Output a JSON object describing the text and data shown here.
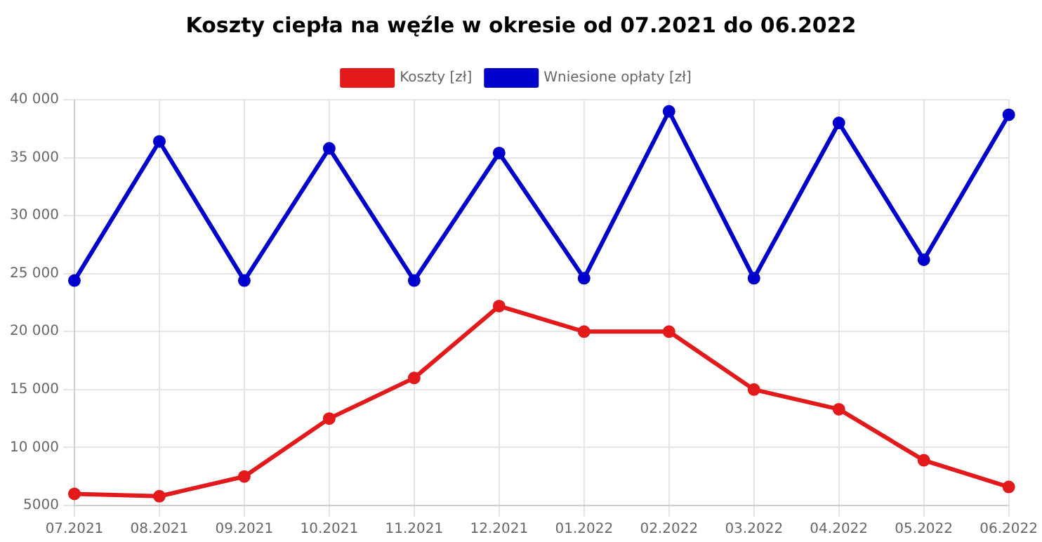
{
  "chart_data": {
    "type": "line",
    "title": "Koszty ciepła na węźle w okresie od 07.2021 do 06.2022",
    "categories": [
      "07.2021",
      "08.2021",
      "09.2021",
      "10.2021",
      "11.2021",
      "12.2021",
      "01.2022",
      "02.2022",
      "03.2022",
      "04.2022",
      "05.2022",
      "06.2022"
    ],
    "series": [
      {
        "name": "Koszty [zł]",
        "color": "#e31a1c",
        "values": [
          6000,
          5800,
          7500,
          12500,
          16000,
          22200,
          20000,
          20000,
          15000,
          13300,
          8900,
          6600
        ]
      },
      {
        "name": "Wniesione opłaty [zł]",
        "color": "#0000cc",
        "values": [
          24400,
          36400,
          24400,
          35800,
          24400,
          35400,
          24600,
          39000,
          24600,
          38000,
          26200,
          38700
        ]
      }
    ],
    "ylim": [
      5000,
      40000
    ],
    "yticks": [
      {
        "value": 5000,
        "label": "5000"
      },
      {
        "value": 10000,
        "label": "10 000"
      },
      {
        "value": 15000,
        "label": "15 000"
      },
      {
        "value": 20000,
        "label": "20 000"
      },
      {
        "value": 25000,
        "label": "25 000"
      },
      {
        "value": 30000,
        "label": "30 000"
      },
      {
        "value": 35000,
        "label": "35 000"
      },
      {
        "value": 40000,
        "label": "40 000"
      }
    ],
    "grid": true,
    "legend": "top",
    "marker": "circle",
    "line_style": "solid"
  }
}
